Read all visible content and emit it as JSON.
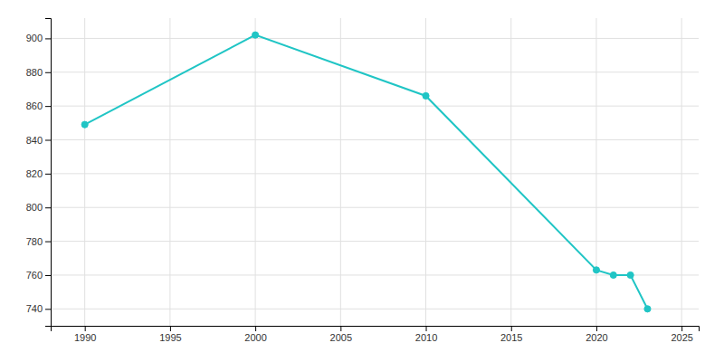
{
  "chart_data": {
    "type": "line",
    "x": [
      1990,
      2000,
      2010,
      2020,
      2021,
      2022,
      2023
    ],
    "values": [
      849,
      902,
      866,
      763,
      760,
      760,
      740
    ],
    "color": "#20C5C5",
    "marker": "circle",
    "xlim": [
      1988,
      2026
    ],
    "ylim": [
      730,
      912
    ],
    "xticks": [
      1990,
      1995,
      2000,
      2005,
      2010,
      2015,
      2020,
      2025
    ],
    "yticks": [
      740,
      760,
      780,
      800,
      820,
      840,
      860,
      880,
      900
    ],
    "grid": true
  }
}
